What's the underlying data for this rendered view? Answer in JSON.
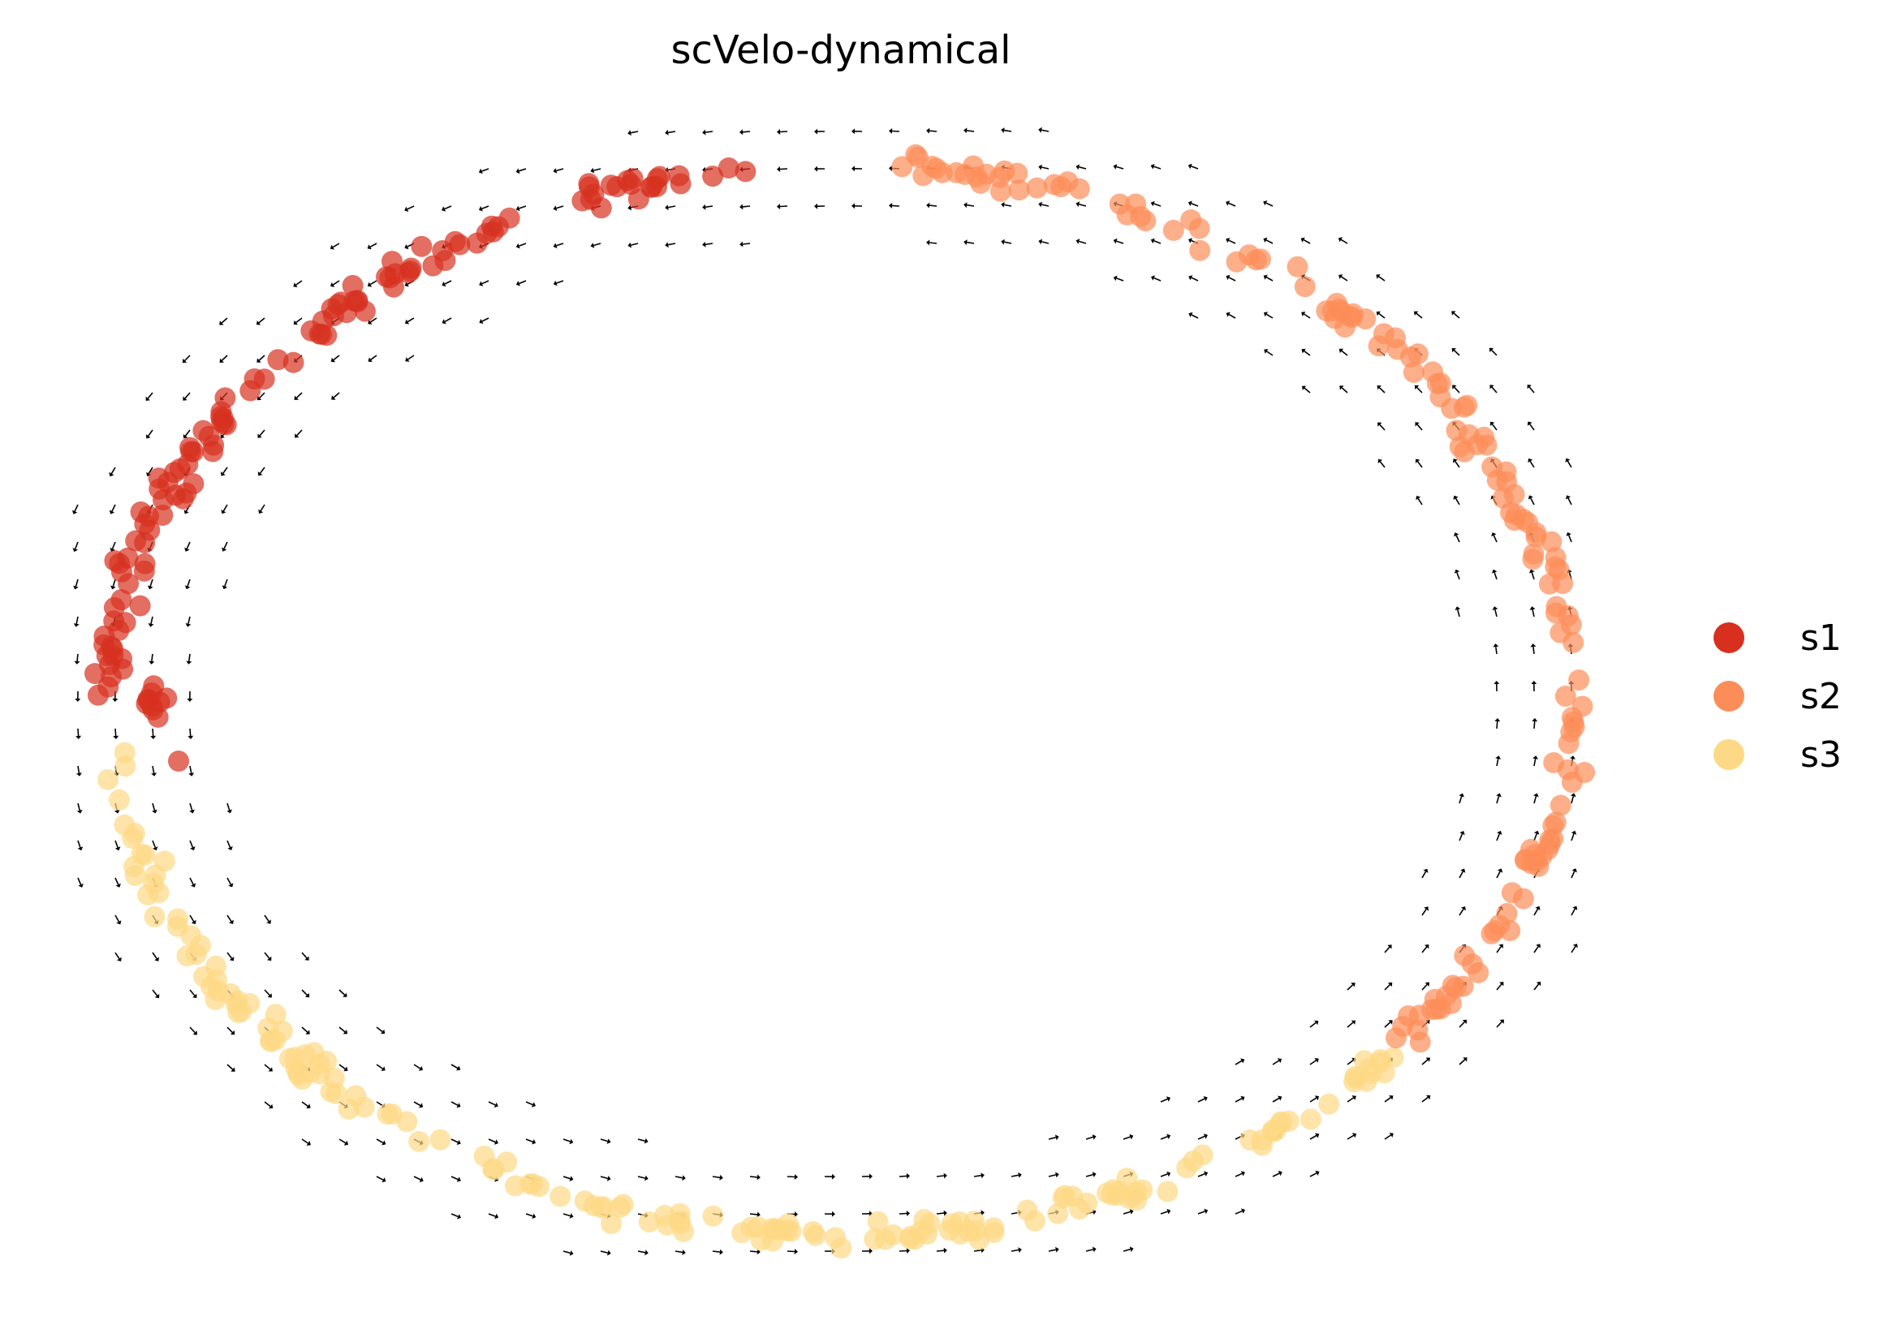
{
  "chart_data": {
    "type": "scatter",
    "title": "scVelo-dynamical",
    "axes_visible": false,
    "legend_position": "right",
    "series": [
      {
        "name": "s1",
        "color": "#d7301f"
      },
      {
        "name": "s2",
        "color": "#fc8d59"
      },
      {
        "name": "s3",
        "color": "#fdd985"
      }
    ],
    "xlim": [
      -1.1,
      1.1
    ],
    "ylim": [
      -1.1,
      1.1
    ],
    "ring": {
      "cell_count": 440,
      "cluster_angle_ranges_deg": {
        "s1": [
          95,
          180
        ],
        "s2": [
          -40,
          88
        ],
        "s3": [
          185,
          320
        ]
      }
    },
    "velocity_grid": {
      "direction": "counter-clockwise along ring",
      "arrow_color": "#000000"
    }
  }
}
